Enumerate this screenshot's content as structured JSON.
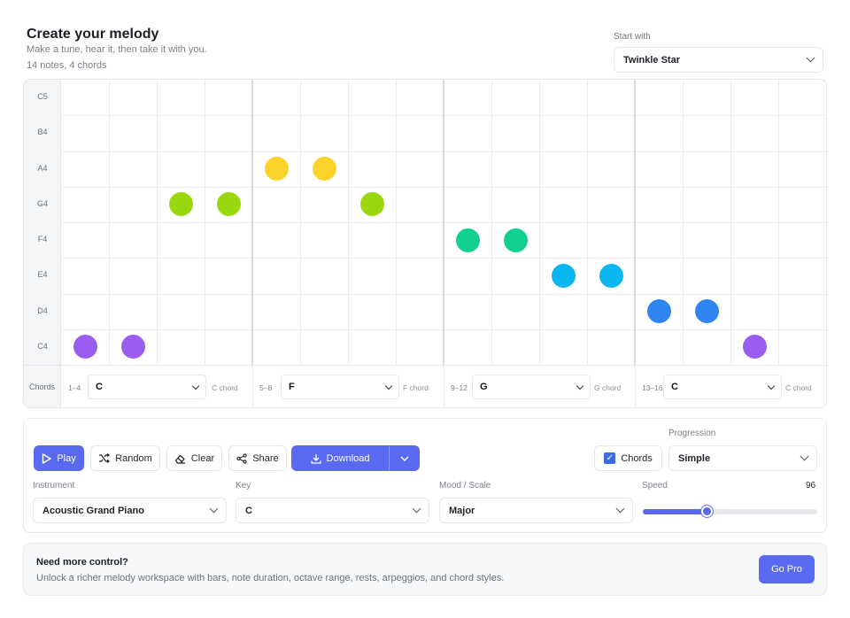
{
  "header": {
    "title": "Create your melody",
    "subtitle": "Make a tune, hear it, then take it with you.",
    "count": "14 notes, 4 chords"
  },
  "start_with": {
    "label": "Start with",
    "value": "Twinkle Star"
  },
  "grid": {
    "note_labels": [
      "C5",
      "B4",
      "A4",
      "G4",
      "F4",
      "E4",
      "D4",
      "C4"
    ],
    "columns": 16,
    "notes": [
      {
        "step": 1,
        "pitch": "C4",
        "color": "#9b5cf0"
      },
      {
        "step": 2,
        "pitch": "C4",
        "color": "#9b5cf0"
      },
      {
        "step": 3,
        "pitch": "G4",
        "color": "#98d80c"
      },
      {
        "step": 4,
        "pitch": "G4",
        "color": "#98d80c"
      },
      {
        "step": 5,
        "pitch": "A4",
        "color": "#fdd22b"
      },
      {
        "step": 6,
        "pitch": "A4",
        "color": "#fdd22b"
      },
      {
        "step": 7,
        "pitch": "G4",
        "color": "#98d80c"
      },
      {
        "step": 9,
        "pitch": "F4",
        "color": "#10cf8f"
      },
      {
        "step": 10,
        "pitch": "F4",
        "color": "#10cf8f"
      },
      {
        "step": 11,
        "pitch": "E4",
        "color": "#0bb7f0"
      },
      {
        "step": 12,
        "pitch": "E4",
        "color": "#0bb7f0"
      },
      {
        "step": 13,
        "pitch": "D4",
        "color": "#2f85f2"
      },
      {
        "step": 14,
        "pitch": "D4",
        "color": "#2f85f2"
      },
      {
        "step": 15,
        "pitch": "C4",
        "color": "#9b5cf0"
      }
    ]
  },
  "chords": {
    "label": "Chords",
    "groups": [
      {
        "range": "1–4",
        "value": "C",
        "name": "C chord"
      },
      {
        "range": "5–8",
        "value": "F",
        "name": "F chord"
      },
      {
        "range": "9–12",
        "value": "G",
        "name": "G chord"
      },
      {
        "range": "13–16",
        "value": "C",
        "name": "C chord"
      }
    ]
  },
  "controls": {
    "play": "Play",
    "random": "Random",
    "clear": "Clear",
    "share": "Share",
    "download": "Download",
    "chords_toggle": "Chords",
    "chords_checked": true,
    "progression_label": "Progression",
    "progression_value": "Simple",
    "instrument_label": "Instrument",
    "instrument_value": "Acoustic Grand Piano",
    "key_label": "Key",
    "key_value": "C",
    "mood_label": "Mood / Scale",
    "mood_value": "Major",
    "speed_label": "Speed",
    "speed_value": "96",
    "speed_fraction": 0.37
  },
  "promo": {
    "title": "Need more control?",
    "body": "Unlock a richer melody workspace with bars, note duration, octave range, rests, arpeggios, and chord styles.",
    "button": "Go Pro"
  },
  "colors": {
    "accent": "#5a6af0"
  }
}
